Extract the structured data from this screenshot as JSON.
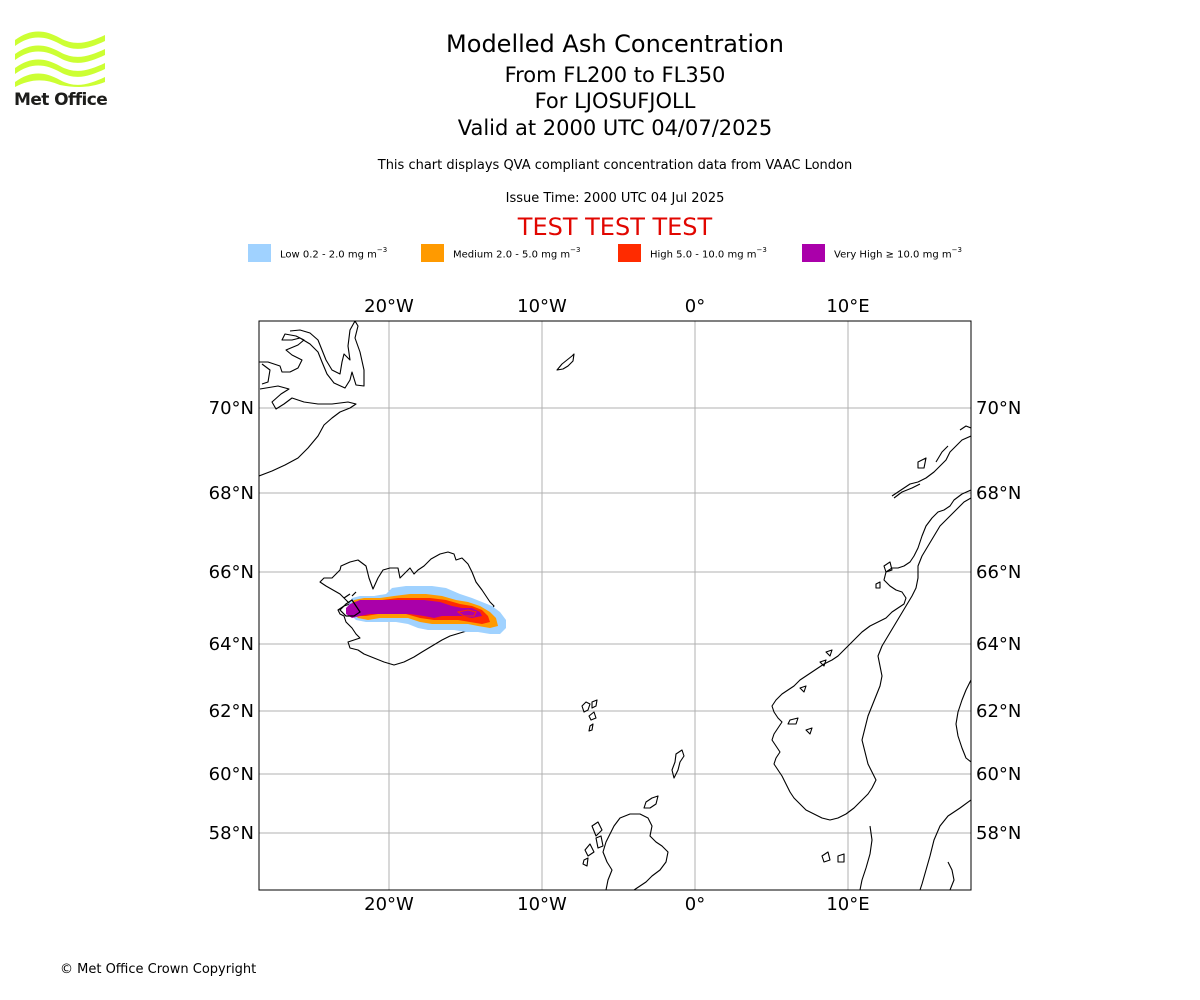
{
  "logo": {
    "text": "Met Office",
    "accent_color": "#ccff33"
  },
  "title": {
    "line1": "Modelled Ash Concentration",
    "line2": "From FL200 to FL350",
    "line3": "For LJOSUFJOLL",
    "line4": "Valid at 2000 UTC 04/07/2025"
  },
  "description": "This chart displays QVA compliant concentration data from VAAC London",
  "issue_time": "Issue Time: 2000 UTC 04 Jul 2025",
  "test_banner": {
    "text": "TEST TEST TEST",
    "color": "#e10600"
  },
  "legend": [
    {
      "label": "Low 0.2 - 2.0 mg m",
      "unit_exp": "−3",
      "color": "#a0d2ff"
    },
    {
      "label": "Medium 2.0 - 5.0 mg m",
      "unit_exp": "−3",
      "color": "#ff9a00"
    },
    {
      "label": "High 5.0 - 10.0 mg m",
      "unit_exp": "−3",
      "color": "#ff2b00"
    },
    {
      "label": "Very High ≥ 10.0 mg m",
      "unit_exp": "−3",
      "color": "#aa00aa"
    }
  ],
  "map": {
    "lon_ticks": [
      "20°W",
      "10°W",
      "0°",
      "10°E"
    ],
    "lat_ticks": [
      "70°N",
      "68°N",
      "66°N",
      "64°N",
      "62°N",
      "60°N",
      "58°N"
    ],
    "gridline_color": "#b0b0b0",
    "coastline_color": "#000000"
  },
  "footer": "© Met Office Crown Copyright"
}
